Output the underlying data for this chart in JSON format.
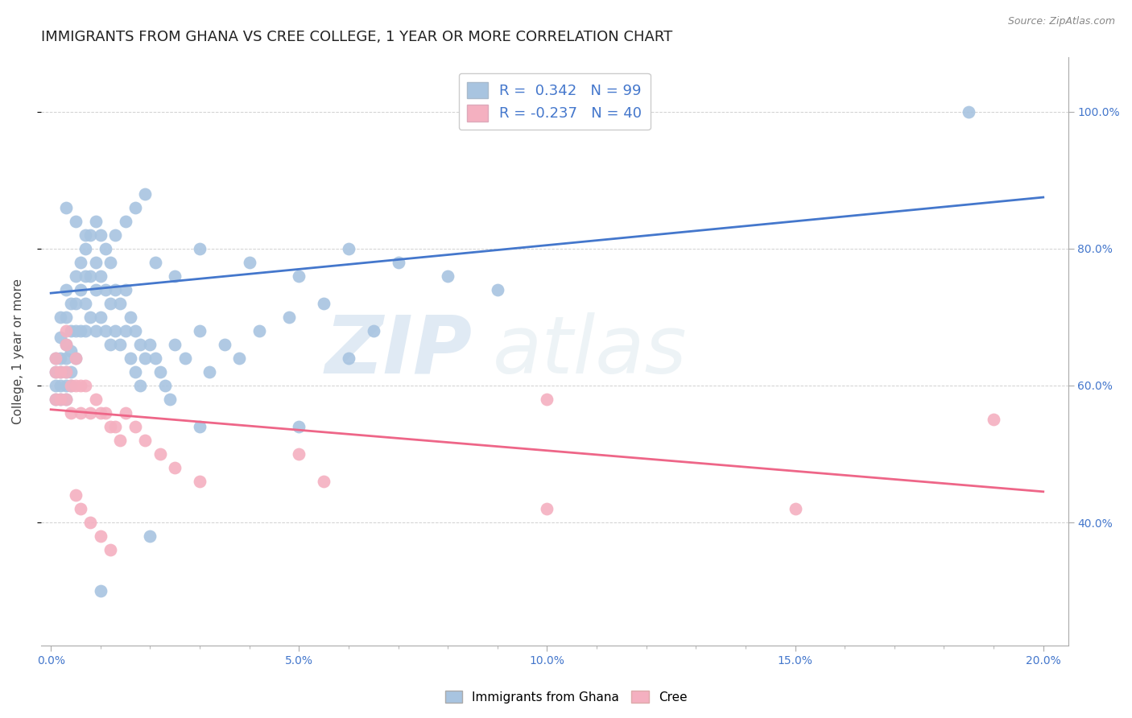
{
  "title": "IMMIGRANTS FROM GHANA VS CREE COLLEGE, 1 YEAR OR MORE CORRELATION CHART",
  "source": "Source: ZipAtlas.com",
  "xlabel_ticks": [
    "0.0%",
    "",
    "",
    "",
    "",
    "5.0%",
    "",
    "",
    "",
    "",
    "10.0%",
    "",
    "",
    "",
    "",
    "15.0%",
    "",
    "",
    "",
    "",
    "20.0%"
  ],
  "xlabel_tick_vals": [
    0.0,
    0.01,
    0.02,
    0.03,
    0.04,
    0.05,
    0.06,
    0.07,
    0.08,
    0.09,
    0.1,
    0.11,
    0.12,
    0.13,
    0.14,
    0.15,
    0.16,
    0.17,
    0.18,
    0.19,
    0.2
  ],
  "xlim_labels": [
    "0.0%",
    "5.0%",
    "10.0%",
    "15.0%",
    "20.0%"
  ],
  "xlim_label_vals": [
    0.0,
    0.05,
    0.1,
    0.15,
    0.2
  ],
  "ylabel": "College, 1 year or more",
  "ylabel_ticks": [
    "40.0%",
    "60.0%",
    "80.0%",
    "100.0%"
  ],
  "ylabel_tick_vals": [
    0.4,
    0.6,
    0.8,
    1.0
  ],
  "xlim": [
    -0.002,
    0.205
  ],
  "ylim": [
    0.22,
    1.08
  ],
  "ghana_R": 0.342,
  "ghana_N": 99,
  "cree_R": -0.237,
  "cree_N": 40,
  "ghana_color": "#a8c4e0",
  "cree_color": "#f4b0c0",
  "ghana_line_color": "#4477cc",
  "cree_line_color": "#ee6688",
  "ghana_scatter_x": [
    0.001,
    0.001,
    0.001,
    0.001,
    0.002,
    0.002,
    0.002,
    0.002,
    0.002,
    0.002,
    0.003,
    0.003,
    0.003,
    0.003,
    0.003,
    0.003,
    0.003,
    0.004,
    0.004,
    0.004,
    0.004,
    0.004,
    0.005,
    0.005,
    0.005,
    0.005,
    0.006,
    0.006,
    0.006,
    0.007,
    0.007,
    0.007,
    0.007,
    0.008,
    0.008,
    0.008,
    0.009,
    0.009,
    0.009,
    0.01,
    0.01,
    0.01,
    0.011,
    0.011,
    0.012,
    0.012,
    0.012,
    0.013,
    0.013,
    0.014,
    0.014,
    0.015,
    0.015,
    0.016,
    0.016,
    0.017,
    0.017,
    0.018,
    0.018,
    0.019,
    0.02,
    0.021,
    0.022,
    0.023,
    0.024,
    0.025,
    0.027,
    0.03,
    0.032,
    0.035,
    0.038,
    0.042,
    0.048,
    0.055,
    0.06,
    0.065,
    0.003,
    0.005,
    0.007,
    0.009,
    0.011,
    0.013,
    0.015,
    0.017,
    0.019,
    0.021,
    0.025,
    0.03,
    0.04,
    0.05,
    0.06,
    0.07,
    0.08,
    0.09,
    0.05,
    0.03,
    0.02,
    0.01,
    0.185
  ],
  "ghana_scatter_y": [
    0.64,
    0.62,
    0.6,
    0.58,
    0.7,
    0.67,
    0.64,
    0.62,
    0.6,
    0.58,
    0.74,
    0.7,
    0.66,
    0.64,
    0.62,
    0.6,
    0.58,
    0.72,
    0.68,
    0.65,
    0.62,
    0.6,
    0.76,
    0.72,
    0.68,
    0.64,
    0.78,
    0.74,
    0.68,
    0.8,
    0.76,
    0.72,
    0.68,
    0.82,
    0.76,
    0.7,
    0.78,
    0.74,
    0.68,
    0.82,
    0.76,
    0.7,
    0.74,
    0.68,
    0.78,
    0.72,
    0.66,
    0.74,
    0.68,
    0.72,
    0.66,
    0.74,
    0.68,
    0.7,
    0.64,
    0.68,
    0.62,
    0.66,
    0.6,
    0.64,
    0.66,
    0.64,
    0.62,
    0.6,
    0.58,
    0.66,
    0.64,
    0.68,
    0.62,
    0.66,
    0.64,
    0.68,
    0.7,
    0.72,
    0.64,
    0.68,
    0.86,
    0.84,
    0.82,
    0.84,
    0.8,
    0.82,
    0.84,
    0.86,
    0.88,
    0.78,
    0.76,
    0.8,
    0.78,
    0.76,
    0.8,
    0.78,
    0.76,
    0.74,
    0.54,
    0.54,
    0.38,
    0.3,
    1.0
  ],
  "cree_scatter_x": [
    0.001,
    0.001,
    0.001,
    0.002,
    0.002,
    0.003,
    0.003,
    0.003,
    0.004,
    0.004,
    0.005,
    0.005,
    0.006,
    0.006,
    0.007,
    0.008,
    0.009,
    0.01,
    0.011,
    0.012,
    0.013,
    0.014,
    0.015,
    0.017,
    0.019,
    0.022,
    0.025,
    0.03,
    0.003,
    0.005,
    0.006,
    0.008,
    0.01,
    0.012,
    0.05,
    0.055,
    0.1,
    0.1,
    0.15,
    0.19
  ],
  "cree_scatter_y": [
    0.64,
    0.62,
    0.58,
    0.62,
    0.58,
    0.66,
    0.62,
    0.58,
    0.6,
    0.56,
    0.64,
    0.6,
    0.6,
    0.56,
    0.6,
    0.56,
    0.58,
    0.56,
    0.56,
    0.54,
    0.54,
    0.52,
    0.56,
    0.54,
    0.52,
    0.5,
    0.48,
    0.46,
    0.68,
    0.44,
    0.42,
    0.4,
    0.38,
    0.36,
    0.5,
    0.46,
    0.58,
    0.42,
    0.42,
    0.55
  ],
  "ghana_line_x": [
    0.0,
    0.2
  ],
  "ghana_line_y": [
    0.735,
    0.875
  ],
  "cree_line_x": [
    0.0,
    0.2
  ],
  "cree_line_y": [
    0.565,
    0.445
  ],
  "watermark_zip": "ZIP",
  "watermark_atlas": "atlas",
  "legend_ghana_label": "Immigrants from Ghana",
  "legend_cree_label": "Cree",
  "title_fontsize": 13,
  "axis_label_fontsize": 11,
  "tick_fontsize": 10,
  "right_tick_color": "#4477cc"
}
